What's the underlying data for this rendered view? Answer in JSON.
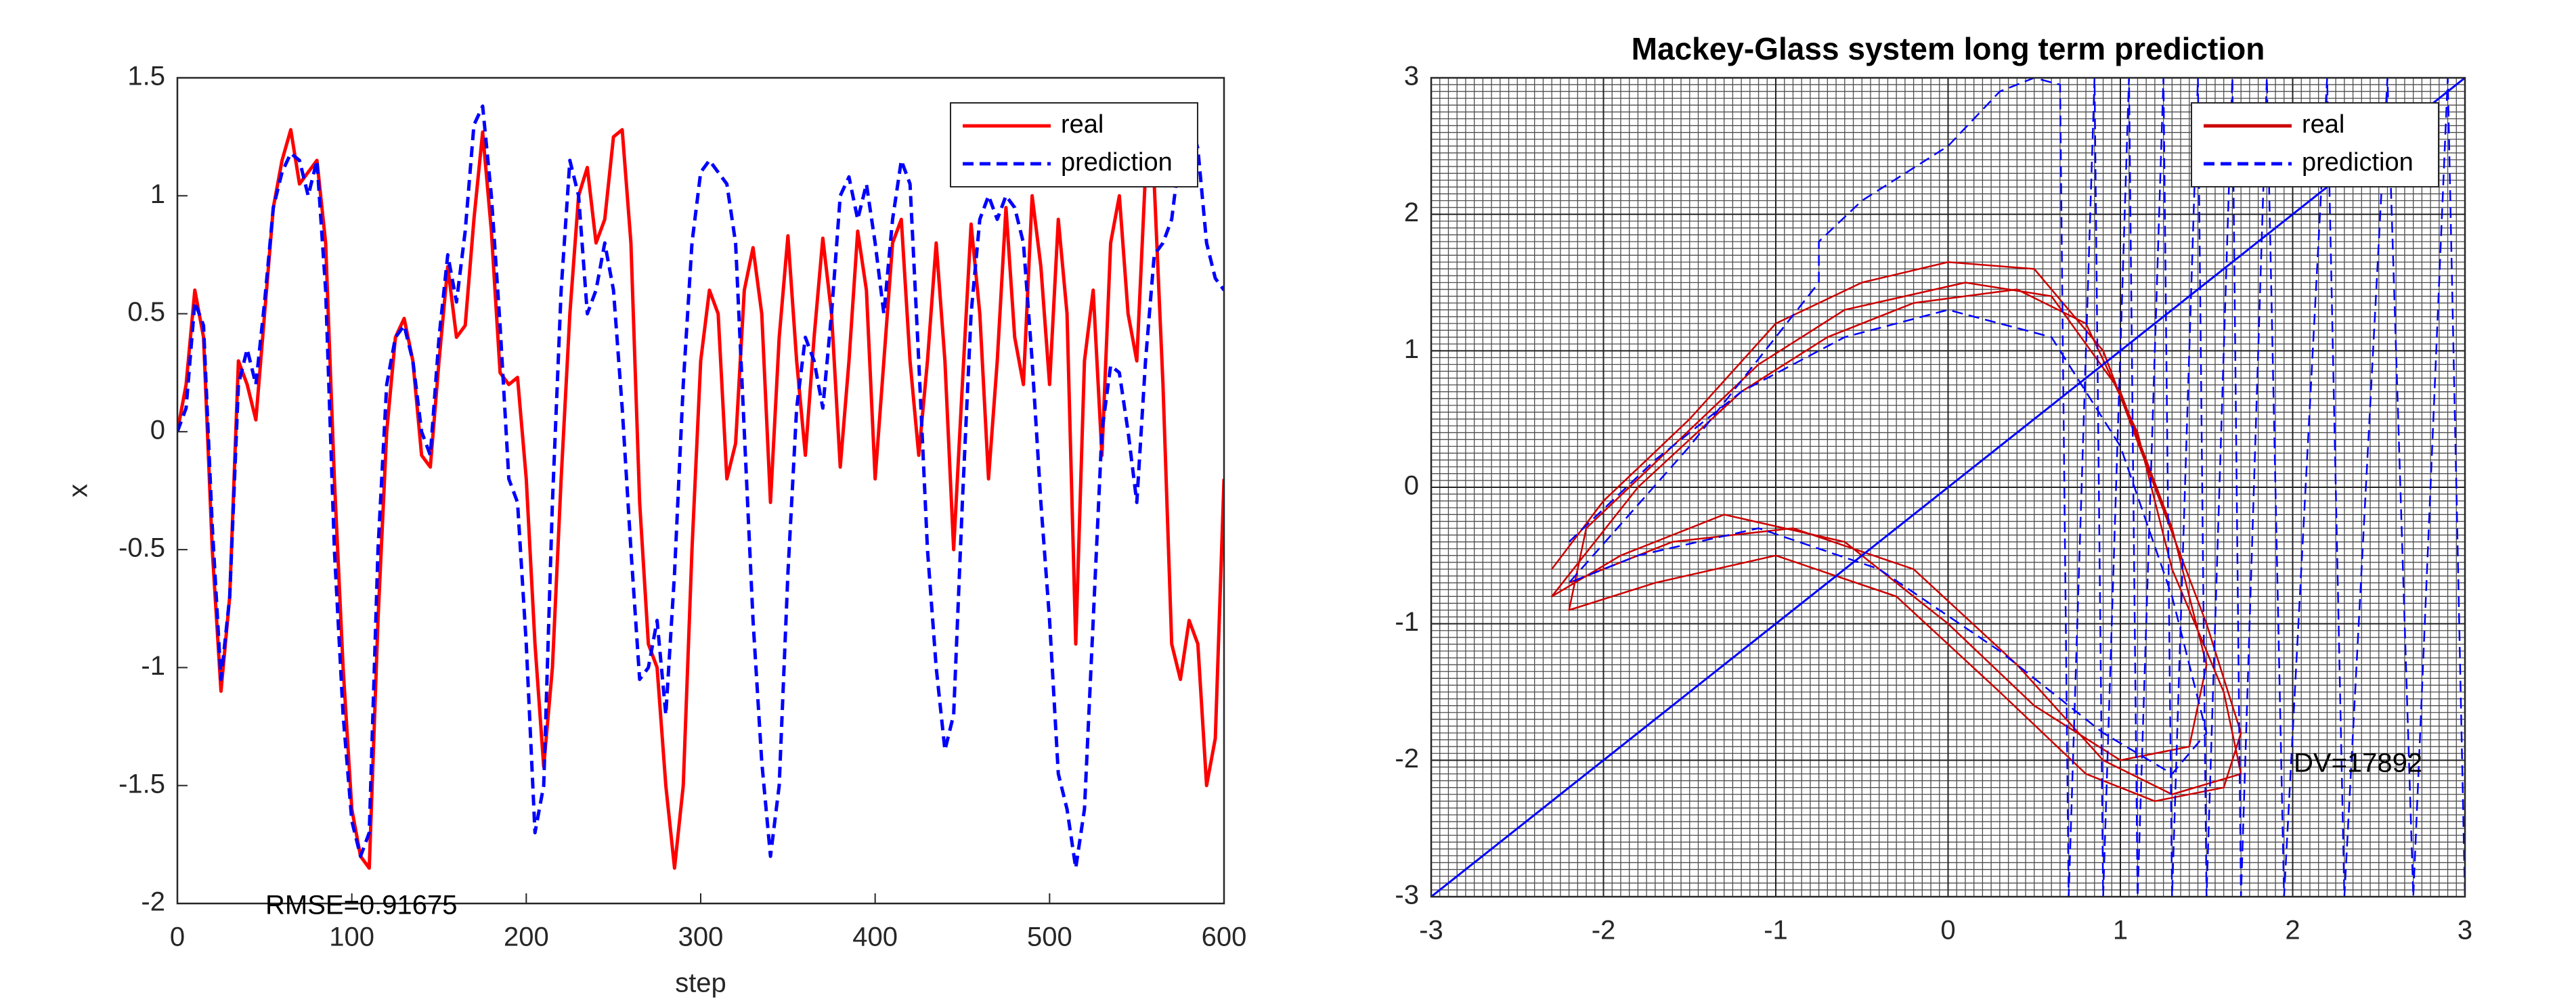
{
  "chart_data": [
    {
      "type": "line",
      "xlabel": "step",
      "ylabel": "x",
      "annotation": "RMSE=0.91675",
      "legend": "northeast",
      "grid": false,
      "xlim": [
        0,
        600
      ],
      "xticks": [
        0,
        100,
        200,
        300,
        400,
        500,
        600
      ],
      "ylim": [
        -2,
        1.5
      ],
      "yticks": [
        -2,
        -1.5,
        -1,
        -0.5,
        0,
        0.5,
        1,
        1.5
      ],
      "x": [
        0,
        5,
        10,
        15,
        20,
        25,
        30,
        35,
        40,
        45,
        50,
        55,
        60,
        65,
        70,
        75,
        80,
        85,
        90,
        95,
        100,
        105,
        110,
        115,
        120,
        125,
        130,
        135,
        140,
        145,
        150,
        155,
        160,
        165,
        170,
        175,
        180,
        185,
        190,
        195,
        200,
        205,
        210,
        215,
        220,
        225,
        230,
        235,
        240,
        245,
        250,
        255,
        260,
        265,
        270,
        275,
        280,
        285,
        290,
        295,
        300,
        305,
        310,
        315,
        320,
        325,
        330,
        335,
        340,
        345,
        350,
        355,
        360,
        365,
        370,
        375,
        380,
        385,
        390,
        395,
        400,
        405,
        410,
        415,
        420,
        425,
        430,
        435,
        440,
        445,
        450,
        455,
        460,
        465,
        470,
        475,
        480,
        485,
        490,
        495,
        500,
        505,
        510,
        515,
        520,
        525,
        530,
        535,
        540,
        545,
        550,
        555,
        560,
        565,
        570,
        575,
        580,
        585,
        590,
        595,
        600
      ],
      "series": [
        {
          "name": "real",
          "color": "#ff0000",
          "line_style": "solid",
          "values": [
            0,
            0.2,
            0.6,
            0.4,
            -0.5,
            -1.1,
            -0.7,
            0.3,
            0.2,
            0.05,
            0.5,
            0.95,
            1.15,
            1.28,
            1.05,
            1.1,
            1.15,
            0.8,
            -0.2,
            -1.0,
            -1.6,
            -1.8,
            -1.85,
            -0.8,
            0.0,
            0.4,
            0.48,
            0.3,
            -0.1,
            -0.15,
            0.3,
            0.7,
            0.4,
            0.45,
            0.9,
            1.27,
            0.85,
            0.25,
            0.2,
            0.23,
            -0.2,
            -0.9,
            -1.42,
            -1.0,
            -0.2,
            0.5,
            1.0,
            1.12,
            0.8,
            0.9,
            1.25,
            1.28,
            0.8,
            -0.3,
            -0.9,
            -1.0,
            -1.5,
            -1.85,
            -1.5,
            -0.5,
            0.3,
            0.6,
            0.5,
            -0.2,
            -0.05,
            0.6,
            0.78,
            0.5,
            -0.3,
            0.4,
            0.83,
            0.3,
            -0.1,
            0.4,
            0.82,
            0.5,
            -0.15,
            0.3,
            0.85,
            0.6,
            -0.2,
            0.3,
            0.8,
            0.9,
            0.3,
            -0.1,
            0.3,
            0.8,
            0.3,
            -0.5,
            0.2,
            0.88,
            0.5,
            -0.2,
            0.3,
            0.95,
            0.4,
            0.2,
            1.0,
            0.7,
            0.2,
            0.9,
            0.5,
            -0.9,
            0.3,
            0.6,
            -0.1,
            0.8,
            1.0,
            0.5,
            0.3,
            1.1,
            1.05,
            0.2,
            -0.9,
            -1.05,
            -0.8,
            -0.9,
            -1.5,
            -1.3,
            -0.2
          ]
        },
        {
          "name": "prediction",
          "color": "#0000ff",
          "line_style": "dashed",
          "values": [
            0,
            0.1,
            0.55,
            0.45,
            -0.4,
            -1.05,
            -0.7,
            0.2,
            0.35,
            0.2,
            0.55,
            0.95,
            1.1,
            1.18,
            1.15,
            1.0,
            1.15,
            0.6,
            -0.5,
            -1.2,
            -1.65,
            -1.8,
            -1.7,
            -0.5,
            0.2,
            0.4,
            0.45,
            0.3,
            0.0,
            -0.1,
            0.4,
            0.75,
            0.55,
            0.85,
            1.3,
            1.38,
            1.0,
            0.45,
            -0.2,
            -0.3,
            -0.9,
            -1.7,
            -1.5,
            -0.3,
            0.6,
            1.15,
            1.0,
            0.5,
            0.6,
            0.8,
            0.6,
            0.1,
            -0.5,
            -1.05,
            -1.0,
            -0.8,
            -1.2,
            -0.6,
            0.2,
            0.8,
            1.1,
            1.15,
            1.1,
            1.05,
            0.8,
            0.0,
            -0.8,
            -1.4,
            -1.8,
            -1.5,
            -0.6,
            0.1,
            0.4,
            0.3,
            0.1,
            0.5,
            1.0,
            1.08,
            0.9,
            1.05,
            0.8,
            0.5,
            0.9,
            1.15,
            1.05,
            0.3,
            -0.5,
            -1.0,
            -1.35,
            -1.2,
            -0.3,
            0.5,
            0.9,
            1.0,
            0.9,
            1.0,
            0.95,
            0.8,
            0.3,
            -0.3,
            -0.8,
            -1.45,
            -1.6,
            -1.85,
            -1.6,
            -0.8,
            0.0,
            0.28,
            0.25,
            0.0,
            -0.3,
            0.3,
            0.75,
            0.8,
            0.9,
            1.2,
            1.35,
            1.2,
            0.8,
            0.65,
            0.6
          ]
        }
      ]
    },
    {
      "type": "line",
      "title": "Mackey-Glass system long term prediction",
      "annotation": "DV=17892",
      "legend": "northeast",
      "grid": true,
      "minor_grid": true,
      "xlim": [
        -3,
        3
      ],
      "xticks": [
        -3,
        -2,
        -1,
        0,
        1,
        2,
        3
      ],
      "ylim": [
        -3,
        3
      ],
      "yticks": [
        -3,
        -2,
        -1,
        0,
        1,
        2,
        3
      ],
      "reference_line": {
        "color": "#0000ff",
        "x": [
          -3,
          3
        ],
        "y": [
          -3,
          3
        ]
      },
      "series": [
        {
          "name": "real",
          "color": "#cc0000",
          "line_style": "solid",
          "x": [
            -2.3,
            -2.0,
            -1.5,
            -1.0,
            -0.5,
            0.0,
            0.5,
            0.9,
            1.2,
            1.5,
            1.7,
            1.6,
            1.2,
            0.8,
            0.3,
            -0.3,
            -1.0,
            -1.7,
            -2.2,
            -2.1,
            -1.6,
            -1.1,
            -0.6,
            0.1,
            0.6,
            1.0,
            1.3,
            1.5,
            1.4,
            1.0,
            0.5,
            0.0,
            -0.6,
            -1.3,
            -1.9,
            -2.3,
            -1.8,
            -1.2,
            -0.7,
            -0.2,
            0.4,
            0.8,
            1.1,
            1.3,
            1.6,
            1.7,
            1.3,
            0.9,
            0.4,
            -0.2,
            -0.9,
            -1.6,
            -2.2
          ],
          "values": [
            -0.6,
            -0.1,
            0.5,
            1.2,
            1.5,
            1.65,
            1.6,
            1.0,
            0.0,
            -1.0,
            -1.8,
            -2.2,
            -2.3,
            -2.1,
            -1.5,
            -0.8,
            -0.5,
            -0.7,
            -0.9,
            -0.3,
            0.3,
            0.9,
            1.3,
            1.5,
            1.4,
            0.7,
            -0.3,
            -1.3,
            -1.9,
            -2.0,
            -1.6,
            -1.0,
            -0.4,
            -0.2,
            -0.5,
            -0.8,
            0.0,
            0.7,
            1.1,
            1.35,
            1.45,
            1.2,
            0.4,
            -0.6,
            -1.5,
            -2.1,
            -2.25,
            -2.0,
            -1.3,
            -0.6,
            -0.3,
            -0.4,
            -0.7
          ]
        },
        {
          "name": "prediction",
          "color": "#0000ff",
          "line_style": "dashed",
          "x": [
            -2.2,
            -1.7,
            -1.2,
            -0.6,
            0.0,
            0.6,
            1.0,
            1.3,
            1.5,
            1.3,
            0.9,
            0.3,
            -0.4,
            -1.1,
            -1.8,
            -2.2,
            -1.5,
            -0.75,
            -0.75,
            -0.5,
            0.0,
            0.3,
            0.5,
            0.65,
            0.7,
            0.85,
            0.9,
            1.05,
            1.1,
            1.25,
            1.3,
            1.45,
            1.5,
            1.65,
            1.7,
            1.85,
            1.95,
            2.2,
            2.3,
            2.55,
            2.7,
            2.9,
            3.0
          ],
          "values": [
            -0.4,
            0.2,
            0.7,
            1.1,
            1.3,
            1.1,
            0.3,
            -0.8,
            -1.8,
            -2.1,
            -1.8,
            -1.2,
            -0.6,
            -0.3,
            -0.5,
            -0.7,
            0.3,
            1.5,
            1.8,
            2.1,
            2.5,
            2.9,
            3.0,
            2.95,
            -3.0,
            3.0,
            -3.0,
            3.0,
            -3.0,
            3.0,
            -3.0,
            3.0,
            -3.0,
            3.0,
            -3.0,
            3.0,
            -3.0,
            3.0,
            -3.0,
            3.0,
            -3.0,
            3.0,
            -3.0
          ]
        }
      ]
    }
  ]
}
